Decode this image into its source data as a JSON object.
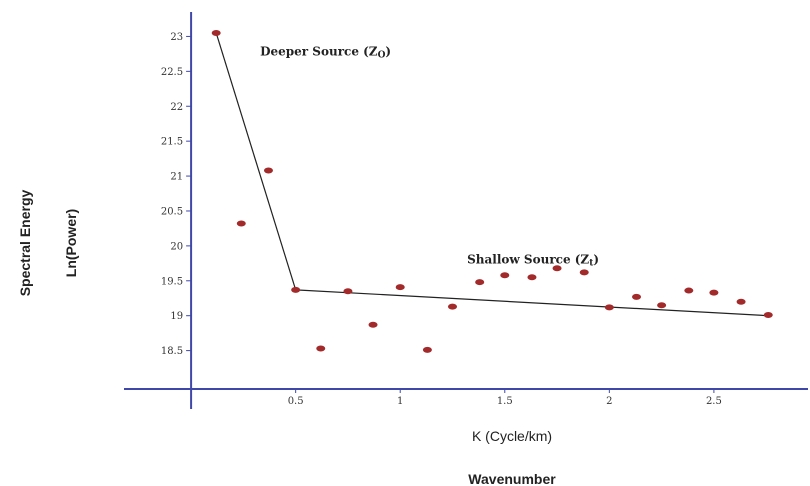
{
  "chart_data": {
    "type": "scatter",
    "title": "",
    "xlabel": "K (Cycle/km)",
    "xlabel_secondary": "Wavenumber",
    "ylabel": "Spectral Energy",
    "ylabel_secondary": "Ln(Power)",
    "xlim": [
      -0.12,
      2.95
    ],
    "ylim": [
      17.95,
      23.35
    ],
    "x_ticks": [
      0.5,
      1,
      1.5,
      2,
      2.5
    ],
    "x_tick_labels": [
      "0.5",
      "1",
      "1.5",
      "2",
      "2.5"
    ],
    "y_ticks": [
      18.5,
      19,
      19.5,
      20,
      20.5,
      21,
      21.5,
      22,
      22.5,
      23
    ],
    "y_tick_labels": [
      "18.5",
      "19",
      "19.5",
      "20",
      "20.5",
      "21",
      "21.5",
      "22",
      "22.5",
      "23"
    ],
    "grid": false,
    "colors": {
      "points": "#a32a2a",
      "axes": "#3f48a8",
      "fit_line": "#222222"
    },
    "series": [
      {
        "x": [
          0.12,
          0.24,
          0.37,
          0.5,
          0.62,
          0.75,
          0.87,
          1.0,
          1.13,
          1.25,
          1.38,
          1.5,
          1.63,
          1.75,
          1.88,
          2.0,
          2.13,
          2.25,
          2.38,
          2.5,
          2.63,
          2.76
        ],
        "y": [
          23.05,
          20.32,
          21.08,
          19.37,
          18.53,
          19.35,
          18.87,
          19.41,
          18.51,
          19.13,
          19.48,
          19.58,
          19.55,
          19.68,
          19.62,
          19.12,
          19.27,
          19.15,
          19.36,
          19.33,
          19.2,
          19.01
        ]
      }
    ],
    "fit_lines": [
      {
        "x": [
          0.12,
          0.5
        ],
        "y": [
          23.05,
          19.37
        ]
      },
      {
        "x": [
          0.5,
          2.76
        ],
        "y": [
          19.37,
          19.0
        ]
      }
    ],
    "annotations": [
      {
        "main": "Deeper Source (Z",
        "sub": "O",
        "close": ")",
        "x": 0.33,
        "y": 22.73
      },
      {
        "main": "Shallow Source (Z",
        "sub": "t",
        "close": ")",
        "x": 1.32,
        "y": 19.75
      }
    ]
  }
}
